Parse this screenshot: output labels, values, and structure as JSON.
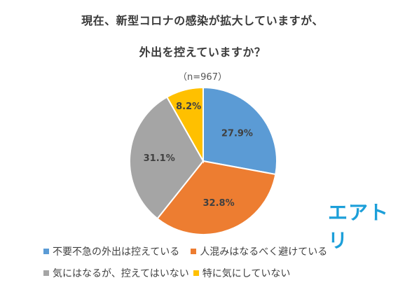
{
  "title_line1": "現在、新型コロナの感染が拡大していますが、",
  "title_line2": "外出を控えていますか？",
  "subtitle": "（n=967）",
  "brand": "エアトリ",
  "colors": {
    "blue": "#5b9bd5",
    "orange": "#ed7d31",
    "gray": "#a5a5a5",
    "yellow": "#ffc000",
    "brand": "#1c9fd9"
  },
  "chart_data": {
    "type": "pie",
    "title": "現在、新型コロナの感染が拡大していますが、外出を控えていますか？",
    "subtitle": "（n=967）",
    "legend_position": "bottom",
    "slices": [
      {
        "label": "不要不急の外出は控えている",
        "value": 27.9,
        "display": "27.9%",
        "color": "#5b9bd5"
      },
      {
        "label": "人混みはなるべく避けている",
        "value": 32.8,
        "display": "32.8%",
        "color": "#ed7d31"
      },
      {
        "label": "気にはなるが、控えてはいない",
        "value": 31.1,
        "display": "31.1%",
        "color": "#a5a5a5"
      },
      {
        "label": "特に気にしていない",
        "value": 8.2,
        "display": "8.2%",
        "color": "#ffc000"
      }
    ]
  }
}
